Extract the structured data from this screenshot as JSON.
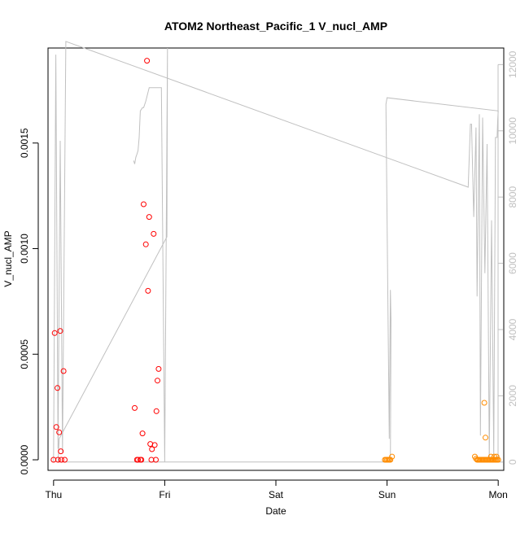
{
  "chart_data": {
    "type": "scatter",
    "title": "ATOM2 Northeast_Pacific_1 V_nucl_AMP",
    "xlabel": "Date",
    "ylabel": "V_nucl_AMP",
    "ylabel_right": "",
    "x_unit": "days since Thursday 00:00",
    "xlim": [
      -0.05,
      4.05
    ],
    "ylim": [
      -5e-05,
      0.00195
    ],
    "ylim_right": [
      -250,
      12500
    ],
    "x_ticks": [
      {
        "value": 0,
        "label": "Thu"
      },
      {
        "value": 1,
        "label": "Fri"
      },
      {
        "value": 2,
        "label": "Sat"
      },
      {
        "value": 3,
        "label": "Sun"
      },
      {
        "value": 4,
        "label": "Mon"
      }
    ],
    "y_ticks": [
      {
        "value": 0,
        "label": "0.0000"
      },
      {
        "value": 0.0005,
        "label": "0.0005"
      },
      {
        "value": 0.001,
        "label": "0.0010"
      },
      {
        "value": 0.0015,
        "label": "0.0015"
      }
    ],
    "y_ticks_right": [
      {
        "value": 0,
        "label": "0"
      },
      {
        "value": 2000,
        "label": "2000"
      },
      {
        "value": 4000,
        "label": "4000"
      },
      {
        "value": 6000,
        "label": "6000"
      },
      {
        "value": 8000,
        "label": "8000"
      },
      {
        "value": 10000,
        "label": "10000"
      },
      {
        "value": 12000,
        "label": "12000"
      }
    ],
    "series": [
      {
        "name": "",
        "color": "#ff0000",
        "marker": "circle-open",
        "points": [
          [
            0.0,
            0.0
          ],
          [
            0.01,
            0.0006
          ],
          [
            0.025,
            0.000155
          ],
          [
            0.035,
            0.00034
          ],
          [
            0.04,
            0.0
          ],
          [
            0.05,
            0.00013
          ],
          [
            0.06,
            0.00061
          ],
          [
            0.065,
            4e-05
          ],
          [
            0.07,
            0.0
          ],
          [
            0.09,
            0.00042
          ],
          [
            0.1,
            0.0
          ],
          [
            0.73,
            0.000245
          ],
          [
            0.75,
            0.0
          ],
          [
            0.76,
            0.0
          ],
          [
            0.78,
            0.0
          ],
          [
            0.79,
            0.0
          ],
          [
            0.8,
            0.000125
          ],
          [
            0.81,
            0.00121
          ],
          [
            0.83,
            0.00102
          ],
          [
            0.84,
            0.00189
          ],
          [
            0.85,
            0.0008
          ],
          [
            0.86,
            0.00115
          ],
          [
            0.87,
            7.5e-05
          ],
          [
            0.88,
            0.0
          ],
          [
            0.885,
            5e-05
          ],
          [
            0.9,
            0.00107
          ],
          [
            0.91,
            7e-05
          ],
          [
            0.92,
            0.0
          ],
          [
            0.925,
            0.00023
          ],
          [
            0.935,
            0.000375
          ],
          [
            0.945,
            0.00043
          ]
        ]
      },
      {
        "name": "",
        "color": "#ff8c00",
        "marker": "circle-open",
        "points": [
          [
            2.98,
            0.0
          ],
          [
            2.99,
            0.0
          ],
          [
            3.0,
            0.0
          ],
          [
            3.01,
            0.0
          ],
          [
            3.02,
            0.0
          ],
          [
            3.03,
            0.0
          ],
          [
            3.045,
            1.5e-05
          ],
          [
            3.79,
            1.5e-05
          ],
          [
            3.8,
            5e-06
          ],
          [
            3.81,
            0.0
          ],
          [
            3.82,
            0.0
          ],
          [
            3.83,
            0.0
          ],
          [
            3.84,
            0.0
          ],
          [
            3.85,
            0.0
          ],
          [
            3.86,
            0.0
          ],
          [
            3.87,
            0.0
          ],
          [
            3.875,
            0.00027
          ],
          [
            3.88,
            0.0
          ],
          [
            3.885,
            0.000105
          ],
          [
            3.89,
            0.0
          ],
          [
            3.9,
            0.0
          ],
          [
            3.91,
            0.0
          ],
          [
            3.92,
            0.0
          ],
          [
            3.93,
            0.0
          ],
          [
            3.935,
            1.5e-05
          ],
          [
            3.94,
            0.0
          ],
          [
            3.95,
            0.0
          ],
          [
            3.96,
            0.0
          ],
          [
            3.965,
            1.5e-05
          ],
          [
            3.97,
            0.0
          ],
          [
            3.98,
            0.0
          ],
          [
            3.985,
            1.5e-05
          ],
          [
            3.99,
            0.0
          ],
          [
            4.0,
            0.0
          ]
        ]
      },
      {
        "name": "",
        "color": "#c0c0c0",
        "marker": "line",
        "axis": "right",
        "points": [
          [
            0.0,
            0.0
          ],
          [
            0.02,
            12300
          ],
          [
            0.04,
            400
          ],
          [
            0.06,
            9700
          ],
          [
            0.08,
            300
          ],
          [
            0.11,
            12700
          ],
          [
            3.73,
            8300
          ],
          [
            3.75,
            10200
          ],
          [
            3.76,
            10200
          ],
          [
            3.78,
            7400
          ],
          [
            3.8,
            10100
          ],
          [
            3.81,
            5000
          ],
          [
            3.83,
            10500
          ],
          [
            3.84,
            800
          ],
          [
            3.86,
            10400
          ],
          [
            3.88,
            5700
          ],
          [
            3.9,
            9600
          ],
          [
            3.92,
            100
          ],
          [
            3.94,
            7300
          ],
          [
            3.96,
            200
          ],
          [
            3.975,
            9800
          ],
          [
            3.99,
            9800
          ],
          [
            3.995,
            10300
          ],
          [
            4.0,
            10600
          ],
          [
            3.0,
            11000
          ],
          [
            2.99,
            10800
          ],
          [
            3.02,
            700
          ],
          [
            3.03,
            5200
          ],
          [
            3.035,
            4300
          ],
          [
            3.03,
            0
          ],
          [
            0.04,
            0
          ],
          [
            0.05,
            700
          ],
          [
            1.02,
            6800
          ],
          [
            1.025,
            12500
          ],
          [
            1.0,
            0
          ],
          [
            0.97,
            11300
          ],
          [
            0.95,
            11300
          ],
          [
            0.89,
            11300
          ],
          [
            0.86,
            11300
          ],
          [
            0.83,
            10900
          ],
          [
            0.81,
            10700
          ],
          [
            0.8,
            10700
          ],
          [
            0.78,
            10600
          ],
          [
            0.77,
            9800
          ],
          [
            0.76,
            9400
          ],
          [
            0.75,
            9300
          ],
          [
            0.74,
            9200
          ],
          [
            0.73,
            9000
          ],
          [
            0.72,
            9100
          ]
        ]
      }
    ],
    "grid": false,
    "legend": "none"
  }
}
